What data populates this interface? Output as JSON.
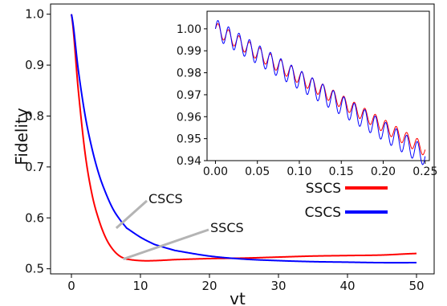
{
  "chart_data": {
    "main": {
      "type": "line",
      "xlabel": "vt",
      "ylabel": "Fidelity",
      "xlim": [
        0,
        50
      ],
      "ylim": [
        0.49,
        1.02
      ],
      "xticks": [
        "0",
        "10",
        "20",
        "30",
        "40",
        "50"
      ],
      "yticks": [
        "0.5",
        "0.6",
        "0.7",
        "0.8",
        "0.9",
        "1.0"
      ],
      "grid": false,
      "series": [
        {
          "name": "SSCS",
          "color": "#ff0000",
          "x": [
            0,
            1,
            2,
            3,
            4,
            5,
            6,
            7,
            8,
            10,
            12,
            15,
            20,
            25,
            30,
            35,
            40,
            45,
            50
          ],
          "y": [
            1.0,
            0.85,
            0.725,
            0.645,
            0.595,
            0.56,
            0.538,
            0.525,
            0.519,
            0.516,
            0.516,
            0.518,
            0.52,
            0.521,
            0.523,
            0.525,
            0.526,
            0.527,
            0.53
          ]
        },
        {
          "name": "CSCS",
          "color": "#0000ff",
          "x": [
            0,
            1,
            2,
            3,
            4,
            5,
            6,
            7,
            8,
            10,
            12,
            15,
            20,
            25,
            30,
            35,
            40,
            45,
            50
          ],
          "y": [
            1.0,
            0.89,
            0.8,
            0.735,
            0.685,
            0.648,
            0.618,
            0.597,
            0.58,
            0.562,
            0.548,
            0.536,
            0.525,
            0.519,
            0.516,
            0.514,
            0.513,
            0.512,
            0.512
          ]
        }
      ],
      "annotations": [
        {
          "text": "CSCS",
          "points_to": [
            6.5,
            0.58
          ]
        },
        {
          "text": "SSCS",
          "points_to": [
            7.5,
            0.519
          ]
        }
      ]
    },
    "inset": {
      "type": "line",
      "xlim": [
        -0.01,
        0.255
      ],
      "ylim": [
        0.94,
        1.008
      ],
      "xticks": [
        "0.00",
        "0.05",
        "0.10",
        "0.15",
        "0.20",
        "0.25"
      ],
      "yticks": [
        "0.94",
        "0.95",
        "0.96",
        "0.97",
        "0.98",
        "0.99",
        "1.00"
      ],
      "series": [
        {
          "name": "SSCS",
          "color": "#ff0000",
          "start": 1.0,
          "end": 0.945,
          "osc_amp": 0.003,
          "osc_period": 0.0125,
          "x_range": [
            0,
            0.25
          ]
        },
        {
          "name": "CSCS",
          "color": "#0000ff",
          "start": 1.0,
          "end": 0.942,
          "osc_amp": 0.0045,
          "osc_period": 0.0125,
          "x_range": [
            0,
            0.25
          ]
        }
      ]
    },
    "legend": {
      "placement": "bottom-right",
      "entries": [
        {
          "label": "SSCS",
          "color": "#ff0000"
        },
        {
          "label": "CSCS",
          "color": "#0000ff"
        }
      ]
    }
  }
}
